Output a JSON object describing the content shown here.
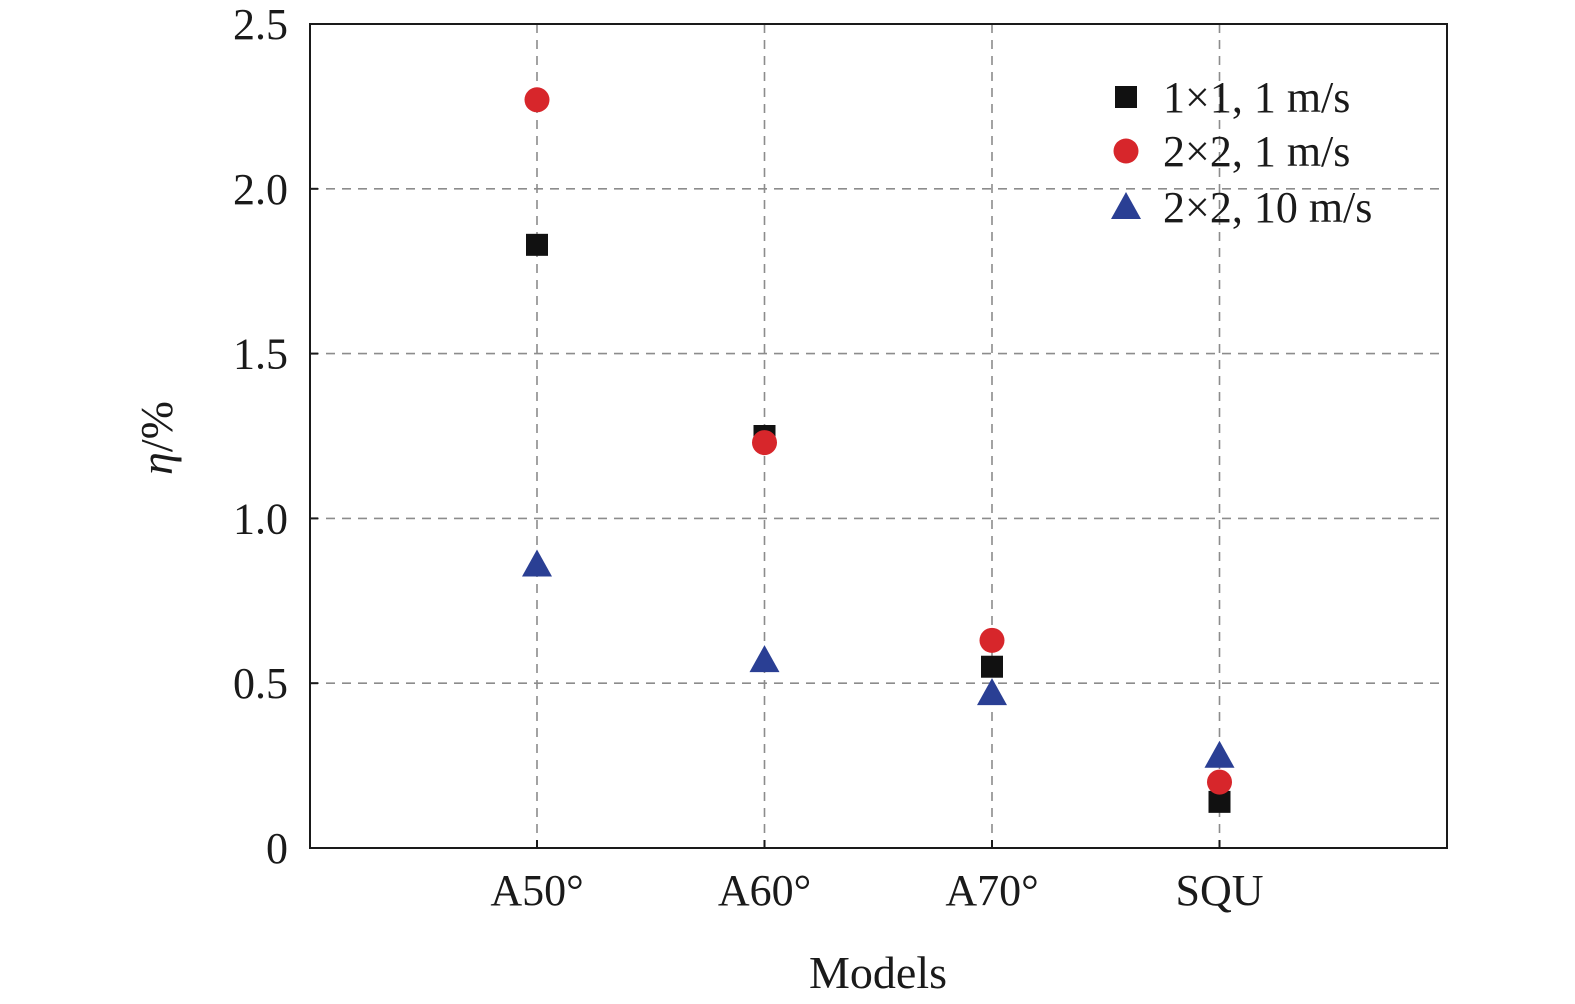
{
  "chart_data": {
    "type": "scatter",
    "categories": [
      "A50°",
      "A60°",
      "A70°",
      "SQU"
    ],
    "xlabel": "Models",
    "ylabel_symbol": "η",
    "ylabel_unit": "/%",
    "ylim": [
      0,
      2.5
    ],
    "yticks": [
      0,
      0.5,
      1.0,
      1.5,
      2.0,
      2.5
    ],
    "ytick_labels": [
      "0",
      "0.5",
      "1.0",
      "1.5",
      "2.0",
      "2.5"
    ],
    "grid": true,
    "legend_position": "top-right",
    "series": [
      {
        "name": "1×1, 1 m/s",
        "marker": "square",
        "color": "#111111",
        "values": [
          1.83,
          1.25,
          0.55,
          0.14
        ]
      },
      {
        "name": "2×2, 1 m/s",
        "marker": "circle",
        "color": "#d7262b",
        "values": [
          2.27,
          1.23,
          0.63,
          0.2
        ]
      },
      {
        "name": "2×2, 10 m/s",
        "marker": "triangle",
        "color": "#2a3f94",
        "values": [
          0.86,
          0.57,
          0.47,
          0.28
        ]
      }
    ]
  }
}
